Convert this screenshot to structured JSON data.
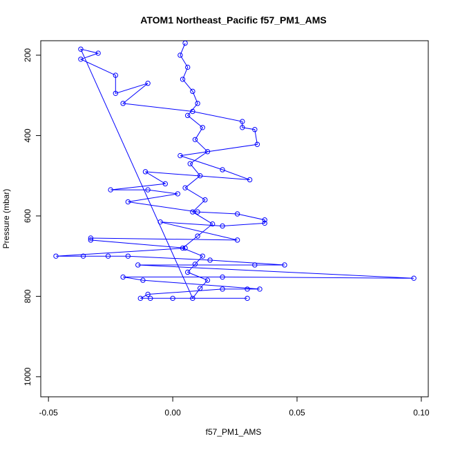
{
  "chart_data": {
    "type": "scatter",
    "title": "ATOM1 Northeast_Pacific f57_PM1_AMS",
    "x_label": "f57_PM1_AMS",
    "y_label": "Pressure (mbar)",
    "xlim": [
      -0.0531,
      0.1028
    ],
    "ylim": [
      1050,
      164
    ],
    "y_reversed": true,
    "xticks": [
      -0.05,
      {
        "value": 0,
        "label": "0.00"
      },
      0.05,
      {
        "value": 0.1,
        "label": "0.10"
      }
    ],
    "yticks": [
      200,
      400,
      600,
      800,
      1000
    ],
    "connect_points": true,
    "grid": false,
    "series": [
      {
        "color": "#0000ff",
        "x": [
          0.005,
          0.003,
          0.006,
          0.004,
          0.008,
          0.01,
          0.006,
          0.012,
          0.009,
          0.014,
          0.007,
          0.011,
          0.005,
          0.013,
          0.008,
          0.016,
          0.01,
          0.004,
          0.012,
          0.009,
          0.006,
          0.014,
          0.011,
          0.008,
          -0.037,
          -0.03,
          -0.037,
          -0.023,
          -0.023,
          -0.01,
          -0.02,
          0.008,
          0.028,
          0.028,
          0.033,
          0.034,
          0.003,
          0.02,
          0.031,
          -0.011,
          -0.003,
          -0.025,
          -0.01,
          0.002,
          -0.018,
          0.01,
          0.026,
          0.037,
          0.037,
          0.02,
          -0.005,
          0.026,
          -0.033,
          -0.033,
          0.005,
          -0.047,
          -0.036,
          -0.026,
          -0.018,
          0.015,
          0.045,
          0.033,
          -0.014,
          0.097,
          0.02,
          -0.02,
          -0.012,
          0.035,
          0.03,
          0.02,
          -0.01,
          -0.013,
          -0.009,
          0.0,
          0.03
        ],
        "y": [
          170,
          200,
          230,
          260,
          290,
          320,
          350,
          380,
          410,
          440,
          470,
          500,
          530,
          560,
          590,
          620,
          650,
          680,
          700,
          720,
          740,
          760,
          780,
          805,
          185,
          195,
          210,
          250,
          295,
          270,
          320,
          340,
          365,
          380,
          385,
          422,
          450,
          485,
          510,
          490,
          520,
          535,
          535,
          545,
          565,
          590,
          595,
          610,
          618,
          625,
          615,
          660,
          655,
          660,
          680,
          700,
          700,
          700,
          700,
          710,
          722,
          722,
          722,
          755,
          752,
          752,
          760,
          782,
          782,
          782,
          795,
          805,
          805,
          805,
          805
        ]
      }
    ]
  }
}
